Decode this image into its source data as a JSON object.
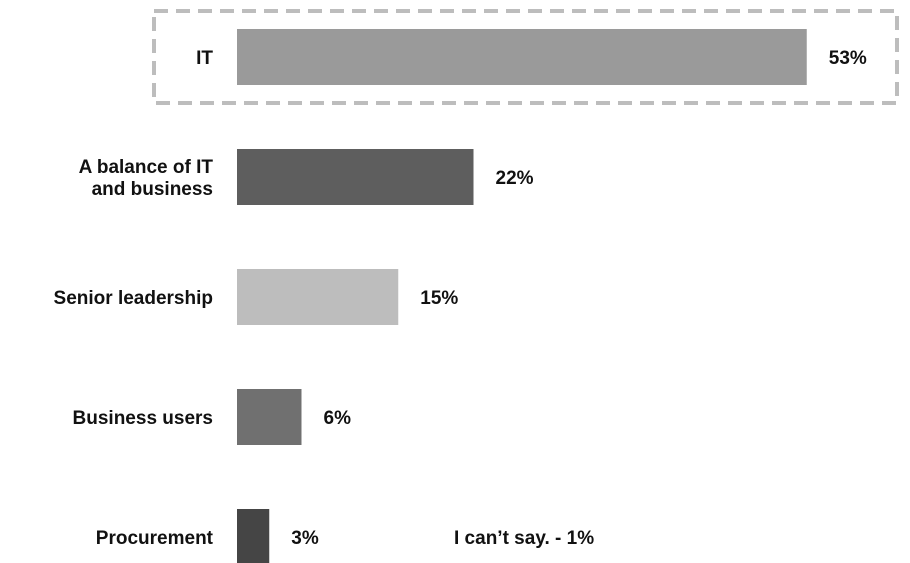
{
  "chart_data": {
    "type": "bar",
    "orientation": "horizontal",
    "categories": [
      "IT",
      "A balance of IT and business",
      "Senior leadership",
      "Business users",
      "Procurement"
    ],
    "category_lines": [
      [
        "IT"
      ],
      [
        "A balance of IT",
        "and business"
      ],
      [
        "Senior leadership"
      ],
      [
        "Business users"
      ],
      [
        "Procurement"
      ]
    ],
    "values": [
      53,
      22,
      15,
      6,
      3
    ],
    "value_labels": [
      "53%",
      "22%",
      "15%",
      "6%",
      "3%"
    ],
    "colors": [
      "#9a9a9a",
      "#5e5e5e",
      "#bdbdbd",
      "#707070",
      "#454545"
    ],
    "highlighted_category": "IT",
    "highlight_border_color": "#bdbdbd",
    "note": "I can’t say. - 1%",
    "title": "",
    "xlabel": "",
    "ylabel": "",
    "grid": false,
    "legend": "none"
  }
}
